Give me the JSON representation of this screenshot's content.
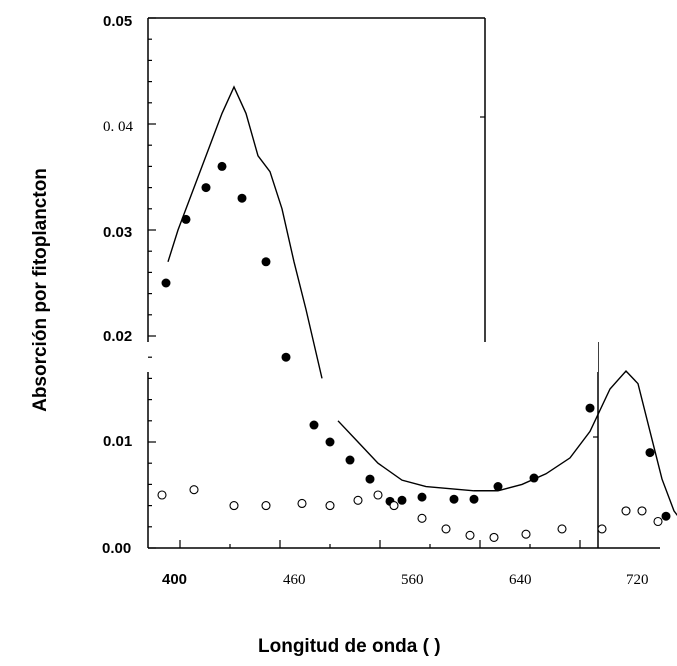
{
  "chart_data": {
    "type": "scatter",
    "xlabel": "Longitud de onda ( )",
    "ylabel": "Absorción por fitoplancton",
    "ylim": [
      0,
      0.05
    ],
    "x_tick_labels": [
      "400",
      "460",
      "560",
      "640",
      "720"
    ],
    "y_tick_labels": [
      "0.00",
      "0.01",
      "0.02",
      "0.03",
      "0. 04",
      "0.05"
    ],
    "grid": false,
    "series": [
      {
        "marker": "line",
        "x": [
          395,
          400,
          408,
          416,
          422,
          428,
          434,
          440,
          446,
          452,
          458,
          464,
          472,
          480,
          490,
          500,
          512,
          524,
          536,
          548,
          560,
          572,
          584,
          596,
          606,
          616,
          624,
          630,
          636,
          642,
          648,
          656,
          665
        ],
        "y": [
          0.027,
          0.03,
          0.034,
          0.038,
          0.041,
          0.0435,
          0.041,
          0.037,
          0.0355,
          0.032,
          0.027,
          0.0225,
          0.016,
          0.012,
          0.01,
          0.008,
          0.0064,
          0.0058,
          0.0056,
          0.0054,
          0.0054,
          0.006,
          0.007,
          0.0085,
          0.011,
          0.015,
          0.0167,
          0.0155,
          0.011,
          0.0065,
          0.0035,
          0.0015,
          0.0004
        ]
      },
      {
        "marker": "filled-circle",
        "x": [
          394,
          404,
          414,
          422,
          432,
          444,
          454,
          468,
          476,
          486,
          496,
          506,
          512,
          522,
          538,
          548,
          560,
          578,
          606,
          636,
          644
        ],
        "y": [
          0.025,
          0.031,
          0.034,
          0.036,
          0.033,
          0.027,
          0.018,
          0.0116,
          0.01,
          0.0083,
          0.0065,
          0.0044,
          0.0045,
          0.0048,
          0.0046,
          0.0046,
          0.0058,
          0.0066,
          0.0132,
          0.009,
          0.003
        ]
      },
      {
        "marker": "open-circle",
        "x": [
          392,
          408,
          428,
          444,
          462,
          476,
          490,
          500,
          508,
          522,
          534,
          546,
          558,
          574,
          592,
          612,
          624,
          632,
          640
        ],
        "y": [
          0.005,
          0.0055,
          0.004,
          0.004,
          0.0042,
          0.004,
          0.0045,
          0.005,
          0.004,
          0.0028,
          0.0018,
          0.0012,
          0.001,
          0.0013,
          0.0018,
          0.0018,
          0.0035,
          0.0035,
          0.0025
        ]
      }
    ]
  }
}
